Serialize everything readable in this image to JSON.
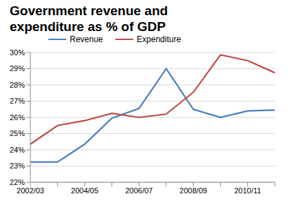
{
  "chart_data": {
    "type": "line",
    "title": "Government revenue and expenditure as % of GDP",
    "categories": [
      "2002/03",
      null,
      "2004/05",
      null,
      "2006/07",
      null,
      "2008/09",
      null,
      "2010/11",
      null
    ],
    "series": [
      {
        "name": "Revenue",
        "color": "#4a7ebb",
        "values": [
          23.25,
          23.25,
          24.35,
          25.95,
          26.55,
          29.0,
          26.5,
          26.0,
          26.4,
          26.45
        ]
      },
      {
        "name": "Expenditure",
        "color": "#be4b48",
        "values": [
          24.35,
          25.5,
          25.8,
          26.25,
          26.0,
          26.2,
          27.55,
          29.85,
          29.5,
          28.75
        ]
      }
    ],
    "ylim": [
      22,
      30
    ],
    "yticks": [
      {
        "value": 22,
        "label": "22%"
      },
      {
        "value": 23,
        "label": "23%"
      },
      {
        "value": 24,
        "label": "24%"
      },
      {
        "value": 25,
        "label": "25%"
      },
      {
        "value": 26,
        "label": "26%"
      },
      {
        "value": 27,
        "label": "27%"
      },
      {
        "value": 28,
        "label": "28%"
      },
      {
        "value": 29,
        "label": "29%"
      },
      {
        "value": 30,
        "label": "30%"
      }
    ],
    "grid": true,
    "legend": "top"
  }
}
